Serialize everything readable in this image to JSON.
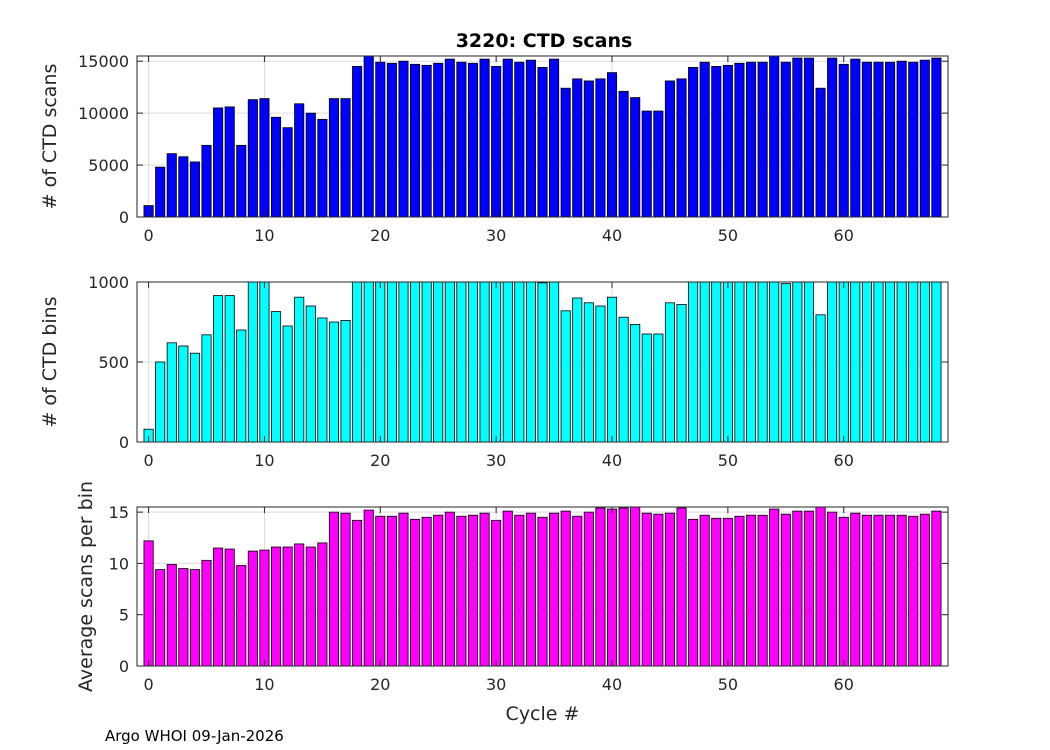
{
  "title": "3220: CTD scans",
  "footer": "Argo WHOI 09-Jan-2026",
  "chart_data": [
    {
      "type": "bar",
      "name": "scans",
      "ylabel": "# of CTD scans",
      "xlabel": "",
      "color": "#0000ff",
      "xlim": [
        -1,
        69
      ],
      "ylim": [
        0,
        15500
      ],
      "xticks": [
        0,
        10,
        20,
        30,
        40,
        50,
        60
      ],
      "yticks": [
        0,
        5000,
        10000,
        15000
      ],
      "grid": true,
      "x": [
        0,
        1,
        2,
        3,
        4,
        5,
        6,
        7,
        8,
        9,
        10,
        11,
        12,
        13,
        14,
        15,
        16,
        17,
        18,
        19,
        20,
        21,
        22,
        23,
        24,
        25,
        26,
        27,
        28,
        29,
        30,
        31,
        32,
        33,
        34,
        35,
        36,
        37,
        38,
        39,
        40,
        41,
        42,
        43,
        44,
        45,
        46,
        47,
        48,
        49,
        50,
        51,
        52,
        53,
        54,
        55,
        56,
        57,
        58,
        59,
        60,
        61,
        62,
        63,
        64,
        65,
        66,
        67,
        68
      ],
      "values": [
        1100,
        4800,
        6100,
        5800,
        5300,
        6900,
        10500,
        10600,
        6900,
        11300,
        11400,
        9600,
        8600,
        10900,
        10000,
        9400,
        11400,
        11400,
        14500,
        15500,
        14900,
        14800,
        15000,
        14700,
        14600,
        14800,
        15200,
        14900,
        14800,
        15200,
        14500,
        15200,
        14900,
        15100,
        14400,
        15200,
        12400,
        13300,
        13100,
        13300,
        13900,
        12100,
        11500,
        10200,
        10200,
        13100,
        13300,
        14400,
        14900,
        14500,
        14600,
        14800,
        14900,
        14900,
        15500,
        14900,
        15300,
        15300,
        12400,
        15300,
        14700,
        15200,
        14900,
        14900,
        14900,
        15000,
        14900,
        15100,
        15300
      ]
    },
    {
      "type": "bar",
      "name": "bins",
      "ylabel": "# of CTD bins",
      "xlabel": "",
      "color": "#00ffff",
      "xlim": [
        -1,
        69
      ],
      "ylim": [
        0,
        1000
      ],
      "xticks": [
        0,
        10,
        20,
        30,
        40,
        50,
        60
      ],
      "yticks": [
        0,
        500,
        1000
      ],
      "grid": true,
      "x": [
        0,
        1,
        2,
        3,
        4,
        5,
        6,
        7,
        8,
        9,
        10,
        11,
        12,
        13,
        14,
        15,
        16,
        17,
        18,
        19,
        20,
        21,
        22,
        23,
        24,
        25,
        26,
        27,
        28,
        29,
        30,
        31,
        32,
        33,
        34,
        35,
        36,
        37,
        38,
        39,
        40,
        41,
        42,
        43,
        44,
        45,
        46,
        47,
        48,
        49,
        50,
        51,
        52,
        53,
        54,
        55,
        56,
        57,
        58,
        59,
        60,
        61,
        62,
        63,
        64,
        65,
        66,
        67,
        68
      ],
      "values": [
        80,
        500,
        620,
        600,
        555,
        670,
        915,
        915,
        700,
        1000,
        1000,
        815,
        725,
        905,
        850,
        775,
        750,
        760,
        1000,
        1000,
        1000,
        1000,
        1000,
        1000,
        1000,
        1000,
        1000,
        1000,
        1000,
        1000,
        1000,
        1000,
        1000,
        1000,
        995,
        1000,
        820,
        900,
        870,
        850,
        905,
        780,
        735,
        675,
        675,
        870,
        860,
        1000,
        1000,
        1000,
        1000,
        1000,
        1000,
        1000,
        1000,
        990,
        1000,
        1000,
        795,
        1000,
        1000,
        1000,
        1000,
        1000,
        1000,
        1000,
        1000,
        1000,
        1000
      ]
    },
    {
      "type": "bar",
      "name": "ratio",
      "ylabel": "Average scans per bin",
      "xlabel": "Cycle #",
      "color": "#ff00ff",
      "xlim": [
        -1,
        69
      ],
      "ylim": [
        0,
        15.5
      ],
      "xticks": [
        0,
        10,
        20,
        30,
        40,
        50,
        60
      ],
      "yticks": [
        0,
        5,
        10,
        15
      ],
      "grid": true,
      "x": [
        0,
        1,
        2,
        3,
        4,
        5,
        6,
        7,
        8,
        9,
        10,
        11,
        12,
        13,
        14,
        15,
        16,
        17,
        18,
        19,
        20,
        21,
        22,
        23,
        24,
        25,
        26,
        27,
        28,
        29,
        30,
        31,
        32,
        33,
        34,
        35,
        36,
        37,
        38,
        39,
        40,
        41,
        42,
        43,
        44,
        45,
        46,
        47,
        48,
        49,
        50,
        51,
        52,
        53,
        54,
        55,
        56,
        57,
        58,
        59,
        60,
        61,
        62,
        63,
        64,
        65,
        66,
        67,
        68
      ],
      "values": [
        12.2,
        9.4,
        9.9,
        9.5,
        9.4,
        10.3,
        11.5,
        11.4,
        9.8,
        11.2,
        11.3,
        11.6,
        11.6,
        11.9,
        11.6,
        12.0,
        15.0,
        14.9,
        14.2,
        15.2,
        14.6,
        14.6,
        14.9,
        14.3,
        14.5,
        14.7,
        15.0,
        14.6,
        14.7,
        14.9,
        14.2,
        15.1,
        14.7,
        14.9,
        14.5,
        14.9,
        15.1,
        14.6,
        15.0,
        15.4,
        15.3,
        15.4,
        15.5,
        14.9,
        14.8,
        14.9,
        15.4,
        14.3,
        14.7,
        14.4,
        14.4,
        14.6,
        14.7,
        14.7,
        15.3,
        14.8,
        15.1,
        15.1,
        15.5,
        15.0,
        14.5,
        14.9,
        14.7,
        14.7,
        14.7,
        14.7,
        14.6,
        14.8,
        15.1
      ]
    }
  ]
}
